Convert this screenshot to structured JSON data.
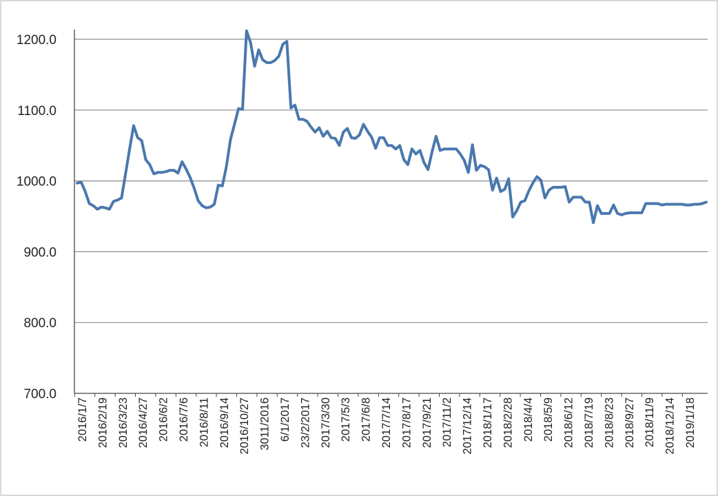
{
  "chart_data": {
    "type": "line",
    "title": "",
    "xlabel": "",
    "ylabel": "",
    "ylim": [
      700,
      1200
    ],
    "yticks": [
      "700.0",
      "800.0",
      "900.0",
      "1000.0",
      "1100.0",
      "1200.0"
    ],
    "xtick_labels": [
      "2016/1/7",
      "2016/2/19",
      "2016/3/23",
      "2016/4/27",
      "2016/6/2",
      "2016/7/6",
      "2016/8/11",
      "2016/9/14",
      "2016/10/27",
      "3011/2016",
      "6/1/2017",
      "23/2/2017",
      "2017/3/30",
      "2017/5/3",
      "2017/6/8",
      "2017/7/14",
      "2017/8/17",
      "2017/9/21",
      "2017/11/2",
      "2017/12/14",
      "2018/1/17",
      "2018/2/28",
      "2018/4/4",
      "2018/5/9",
      "2018/6/12",
      "2018/7/19",
      "2018/8/23",
      "2018/9/27",
      "2018/11/9",
      "2018/12/14",
      "2019/1/18"
    ],
    "grid": true,
    "legend": "none",
    "colors": {
      "line": "#4A78AE",
      "grid": "#8C8C8C",
      "axis": "#444444",
      "frame": "#D9D9D9",
      "text": "#222222"
    },
    "series": [
      {
        "values": [
          997,
          998,
          985,
          968,
          965,
          960,
          963,
          962,
          960,
          971,
          973,
          976,
          1010,
          1045,
          1078,
          1061,
          1057,
          1030,
          1023,
          1010,
          1012,
          1012,
          1013,
          1015,
          1015,
          1011,
          1027,
          1017,
          1005,
          990,
          972,
          965,
          962,
          963,
          967,
          994,
          993,
          1020,
          1058,
          1080,
          1102,
          1101,
          1212,
          1195,
          1162,
          1185,
          1171,
          1167,
          1167,
          1170,
          1176,
          1193,
          1197,
          1103,
          1107,
          1087,
          1087,
          1084,
          1076,
          1069,
          1075,
          1063,
          1070,
          1061,
          1060,
          1050,
          1069,
          1074,
          1061,
          1060,
          1065,
          1080,
          1070,
          1062,
          1046,
          1061,
          1061,
          1050,
          1050,
          1045,
          1050,
          1030,
          1023,
          1045,
          1038,
          1043,
          1026,
          1016,
          1041,
          1063,
          1043,
          1045,
          1045,
          1045,
          1045,
          1038,
          1029,
          1012,
          1051,
          1015,
          1022,
          1020,
          1016,
          987,
          1004,
          985,
          988,
          1003,
          949,
          958,
          970,
          972,
          986,
          997,
          1006,
          1001,
          976,
          987,
          991,
          991,
          991,
          992,
          970,
          977,
          977,
          977,
          970,
          970,
          941,
          965,
          954,
          954,
          954,
          966,
          954,
          952,
          954,
          955,
          955,
          955,
          955,
          968,
          968,
          968,
          968,
          966,
          967,
          967,
          967,
          967,
          967,
          966,
          966,
          967,
          967,
          968,
          970
        ]
      }
    ]
  }
}
